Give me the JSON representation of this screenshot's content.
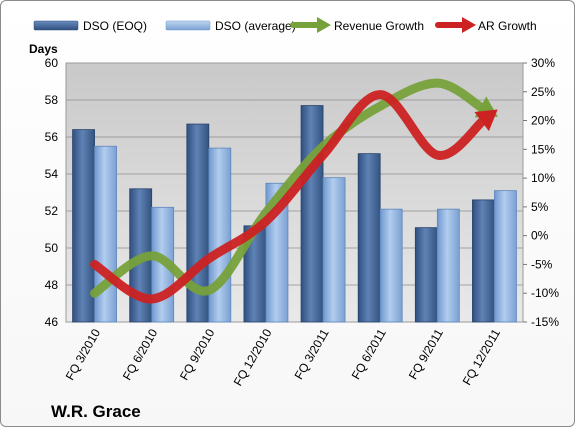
{
  "chart_data": {
    "type": "bar",
    "title": "",
    "company_label": "W.R. Grace",
    "ylabel_left": "Days",
    "categories": [
      "FQ 3/2010",
      "FQ 6/2010",
      "FQ 9/2010",
      "FQ 12/2010",
      "FQ 3/2011",
      "FQ 6/2011",
      "FQ 9/2011",
      "FQ 12/2011"
    ],
    "y_left": {
      "min": 46,
      "max": 60,
      "step": 2,
      "ticks": [
        "46",
        "48",
        "50",
        "52",
        "54",
        "56",
        "58",
        "60"
      ]
    },
    "y_right": {
      "min": -15,
      "max": 30,
      "step": 5,
      "ticks": [
        "-15%",
        "-10%",
        "-5%",
        "0%",
        "5%",
        "10%",
        "15%",
        "20%",
        "25%",
        "30%"
      ]
    },
    "grid": true,
    "legend_position": "top",
    "series": [
      {
        "name": "DSO (EOQ)",
        "type": "bar",
        "axis": "left",
        "color": "#4a6a9c",
        "values": [
          56.4,
          53.2,
          56.7,
          51.2,
          57.7,
          55.1,
          51.1,
          52.6
        ]
      },
      {
        "name": "DSO (average)",
        "type": "bar",
        "axis": "left",
        "color": "#8fb4e3",
        "values": [
          55.5,
          52.2,
          55.4,
          53.5,
          53.8,
          52.1,
          52.1,
          53.1
        ]
      },
      {
        "name": "Revenue Growth",
        "type": "line",
        "axis": "right",
        "color": "#77a13a",
        "values": [
          -10,
          -3.5,
          -9.5,
          4,
          15.5,
          22.5,
          26.5,
          21
        ]
      },
      {
        "name": "AR Growth",
        "type": "line",
        "axis": "right",
        "color": "#cc2222",
        "values": [
          -5,
          -11,
          -4,
          2.5,
          14,
          24.5,
          14,
          21.5
        ]
      }
    ]
  }
}
